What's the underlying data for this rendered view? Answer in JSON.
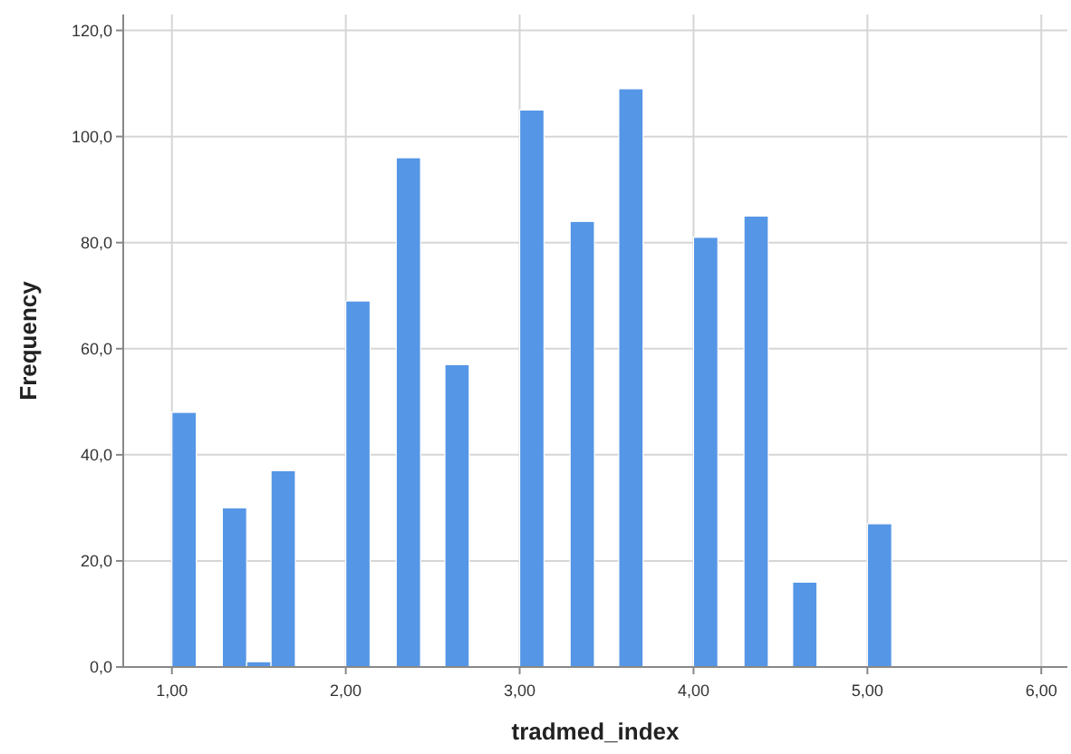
{
  "chart_data": {
    "type": "histogram",
    "xlabel": "tradmed_index",
    "ylabel": "Frequency",
    "color": "#5596e6",
    "bins": [
      1.0,
      1.14,
      1.29,
      1.43,
      1.57,
      1.71,
      2.0,
      2.14,
      2.29,
      2.43,
      2.57,
      2.71,
      3.0,
      3.14,
      3.29,
      3.43,
      3.57,
      3.71,
      4.0,
      4.14,
      4.29,
      4.43,
      4.57,
      4.71,
      5.0,
      5.14
    ],
    "values": [
      48,
      0,
      30,
      1,
      37,
      0,
      69,
      0,
      96,
      0,
      57,
      0,
      105,
      0,
      84,
      0,
      109,
      0,
      81,
      0,
      85,
      0,
      16,
      0,
      27
    ],
    "xlim": [
      0.72,
      6.15
    ],
    "ylim": [
      0,
      123
    ],
    "xticks": [
      {
        "value": 1,
        "label": "1,00"
      },
      {
        "value": 2,
        "label": "2,00"
      },
      {
        "value": 3,
        "label": "3,00"
      },
      {
        "value": 4,
        "label": "4,00"
      },
      {
        "value": 5,
        "label": "5,00"
      },
      {
        "value": 6,
        "label": "6,00"
      }
    ],
    "yticks": [
      {
        "value": 0,
        "label": "0,0"
      },
      {
        "value": 20,
        "label": "20,0"
      },
      {
        "value": 40,
        "label": "40,0"
      },
      {
        "value": 60,
        "label": "60,0"
      },
      {
        "value": 80,
        "label": "80,0"
      },
      {
        "value": 100,
        "label": "100,0"
      },
      {
        "value": 120,
        "label": "120,0"
      }
    ],
    "grid": true
  }
}
